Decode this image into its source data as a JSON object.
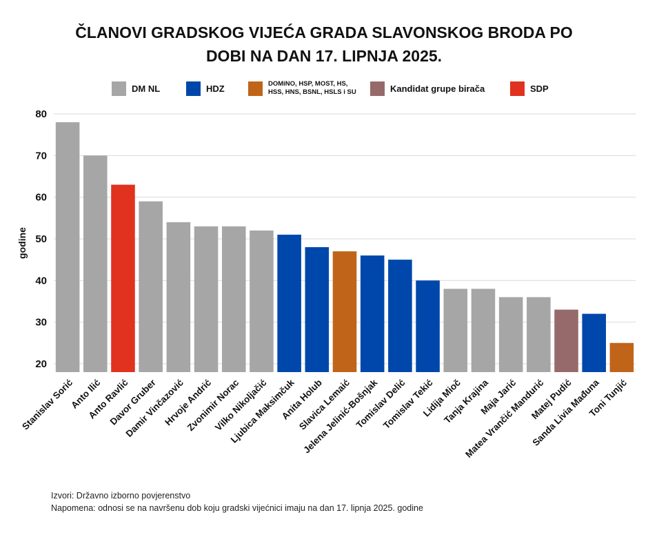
{
  "title_line1": "ČLANOVI GRADSKOG VIJEĆA GRADA SLAVONSKOG BRODA PO",
  "title_line2": "DOBI NA DAN 17. LIPNJA 2025.",
  "legend": [
    {
      "label": "DM NL",
      "color": "#a6a6a6"
    },
    {
      "label": "HDZ",
      "color": "#0047ab"
    },
    {
      "label": "DOMiNO, HSP, MOST, HS,\nHSS, HNS, BSNL, HSLS i SU",
      "color": "#c0641a"
    },
    {
      "label": "Kandidat grupe birača",
      "color": "#966a6a"
    },
    {
      "label": "SDP",
      "color": "#e0321e"
    }
  ],
  "footer": {
    "source": "Izvori: Državno izborno povjerenstvo",
    "note": "Napomena: odnosi se na navršenu dob koju gradski vijećnici imaju na dan 17. lipnja 2025. godine"
  },
  "chart_data": {
    "type": "bar",
    "ylabel": "godine",
    "ylim": [
      18,
      80
    ],
    "yticks": [
      20,
      30,
      40,
      50,
      60,
      70,
      80
    ],
    "grid": true,
    "legend_position": "top",
    "categories": [
      "Stanislav Sorić",
      "Anto Ilić",
      "Anto Ravlić",
      "Davor Gruber",
      "Damir Vinčazović",
      "Hrvoje Andrić",
      "Zvonimir Norac",
      "Vilko Nikoljačić",
      "Ljubica Maksimčuk",
      "Anita Holub",
      "Slavica Lemaić",
      "Jelena Jelinić-Bošnjak",
      "Tomislav Delić",
      "Tomislav Tekić",
      "Lidija Mioč",
      "Tanja Krajina",
      "Maja Jarić",
      "Matea Vrančić Mandurić",
      "Matej Pudić",
      "Sanda Livia Mađuna",
      "Toni Tunjić"
    ],
    "values": [
      78,
      70,
      63,
      59,
      54,
      53,
      53,
      52,
      51,
      48,
      47,
      46,
      45,
      40,
      38,
      38,
      36,
      36,
      33,
      32,
      25
    ],
    "colors": [
      "#a6a6a6",
      "#a6a6a6",
      "#e0321e",
      "#a6a6a6",
      "#a6a6a6",
      "#a6a6a6",
      "#a6a6a6",
      "#a6a6a6",
      "#0047ab",
      "#0047ab",
      "#c0641a",
      "#0047ab",
      "#0047ab",
      "#0047ab",
      "#a6a6a6",
      "#a6a6a6",
      "#a6a6a6",
      "#a6a6a6",
      "#966a6a",
      "#0047ab",
      "#c0641a"
    ]
  }
}
